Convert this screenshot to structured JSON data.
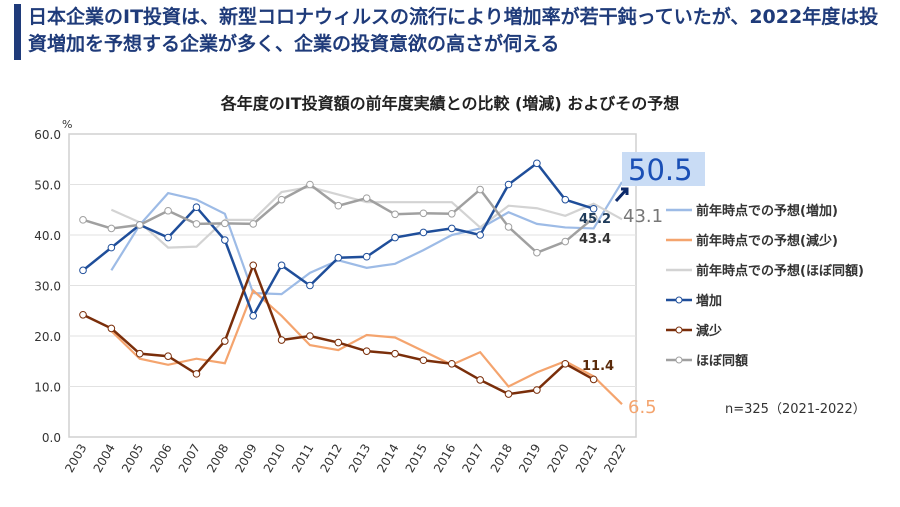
{
  "header": {
    "title": "日本企業のIT投資は、新型コロナウィルスの流行により増加率が若干鈍っていたが、2022年度は投資増加を予想する企業が多く、企業の投資意欲の高さが伺える"
  },
  "note": "n=325（2021-2022）",
  "chart_data": {
    "type": "line",
    "title": "各年度のIT投資額の前年度実績との比較 (増減) およびその予想",
    "ylabel": "%",
    "ylim": [
      0,
      60
    ],
    "yticks": [
      "0.0",
      "10.0",
      "20.0",
      "30.0",
      "40.0",
      "50.0",
      "60.0"
    ],
    "grid": true,
    "legend_position": "right",
    "x": [
      "2003",
      "2004",
      "2005",
      "2006",
      "2007",
      "2008",
      "2009",
      "2010",
      "2011",
      "2012",
      "2013",
      "2014",
      "2015",
      "2016",
      "2017",
      "2018",
      "2019",
      "2020",
      "2021",
      "2022"
    ],
    "series": [
      {
        "name": "前年時点での予想(増加)",
        "color": "#9dbbe6",
        "markers": false,
        "values": [
          null,
          33,
          42,
          48.3,
          47,
          44.2,
          28.5,
          28.3,
          32.5,
          35,
          33.5,
          34.3,
          37,
          40,
          41.3,
          44.5,
          42.2,
          41.5,
          41.3,
          50.5
        ]
      },
      {
        "name": "前年時点での予想(減少)",
        "color": "#f4a46e",
        "markers": false,
        "values": [
          null,
          21,
          15.5,
          14.3,
          15.5,
          14.6,
          29,
          24,
          18.2,
          17.2,
          20.2,
          19.7,
          17,
          14.3,
          16.8,
          10,
          12.8,
          15,
          12,
          6.5
        ]
      },
      {
        "name": "前年時点での予想(ほぼ同額)",
        "color": "#d3d3d3",
        "markers": false,
        "values": [
          null,
          45,
          42.5,
          37.5,
          37.7,
          43,
          43,
          48.5,
          49.5,
          48,
          46.5,
          46.5,
          46.5,
          46.5,
          41.5,
          45.8,
          45.3,
          43.8,
          46.2,
          43.1
        ]
      },
      {
        "name": "増加",
        "color": "#1f4e9a",
        "markers": true,
        "values": [
          33,
          37.5,
          42,
          39.5,
          45.5,
          39,
          24,
          34,
          30,
          35.5,
          35.7,
          39.5,
          40.5,
          41.3,
          40,
          50,
          54.2,
          47,
          45.2,
          null
        ]
      },
      {
        "name": "減少",
        "color": "#7a2e0a",
        "markers": true,
        "values": [
          24.2,
          21.5,
          16.5,
          16,
          12.5,
          19,
          34,
          19.2,
          20,
          18.7,
          17,
          16.5,
          15.2,
          14.5,
          11.3,
          8.5,
          9.3,
          14.5,
          11.4,
          null
        ]
      },
      {
        "name": "ほぼ同額",
        "color": "#a0a0a0",
        "markers": true,
        "values": [
          43,
          41.3,
          42,
          44.8,
          42.2,
          42.3,
          42.2,
          47,
          50,
          45.8,
          47.3,
          44.1,
          44.3,
          44.2,
          49,
          41.6,
          36.5,
          38.7,
          43.4,
          null
        ]
      }
    ],
    "annotations": [
      "45.2",
      "43.4",
      "11.4",
      "50.5",
      "43.1",
      "6.5"
    ]
  }
}
